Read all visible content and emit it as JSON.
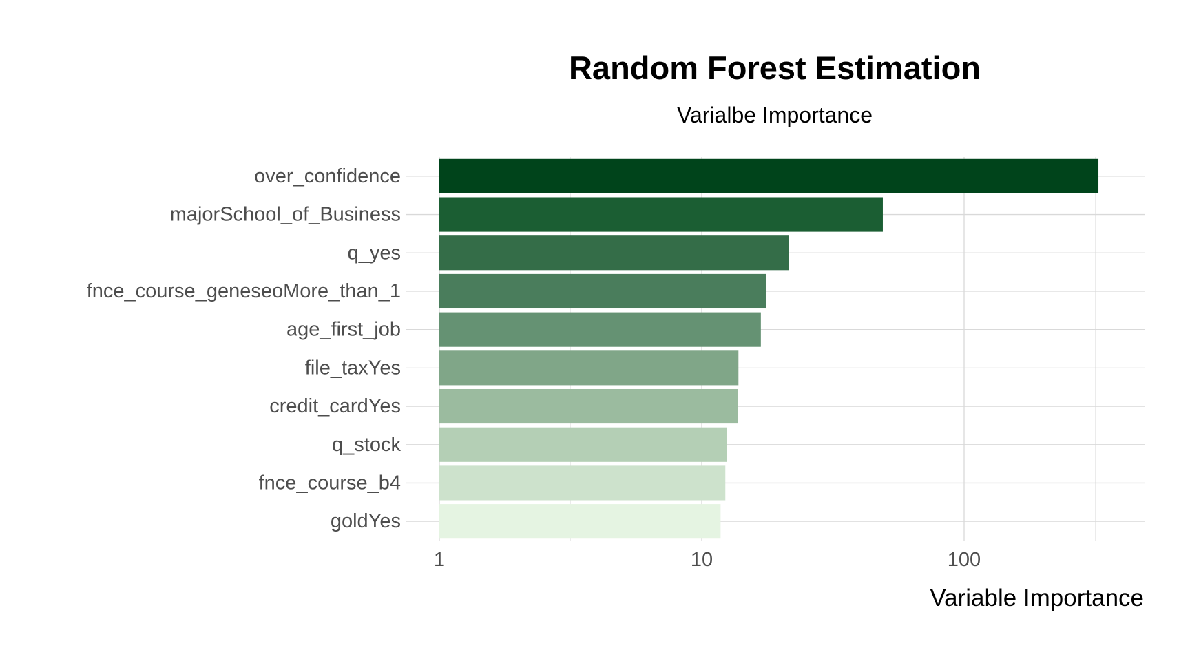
{
  "chart_data": {
    "type": "bar",
    "orientation": "horizontal",
    "title": "Random Forest Estimation",
    "subtitle": "Varialbe Importance",
    "xlabel": "Variable Importance",
    "ylabel": "",
    "x_scale": "log10",
    "xlim": [
      1,
      400
    ],
    "x_ticks": [
      1,
      10,
      100
    ],
    "x_tick_labels": [
      "1",
      "10",
      "100"
    ],
    "grid": true,
    "legend": "none",
    "categories": [
      "over_confidence",
      "majorSchool_of_Business",
      "q_yes",
      "fnce_course_geneseoMore_than_1",
      "age_first_job",
      "file_taxYes",
      "credit_cardYes",
      "q_stock",
      "fnce_course_b4",
      "goldYes"
    ],
    "values": [
      325,
      49,
      21.5,
      17.6,
      16.8,
      13.8,
      13.7,
      12.5,
      12.3,
      11.8
    ],
    "colors": [
      "#00441b",
      "#1b5e33",
      "#346d48",
      "#4a7d5c",
      "#659273",
      "#80a688",
      "#9bbb9f",
      "#b4cfb5",
      "#cde2cc",
      "#e5f4e2"
    ]
  }
}
